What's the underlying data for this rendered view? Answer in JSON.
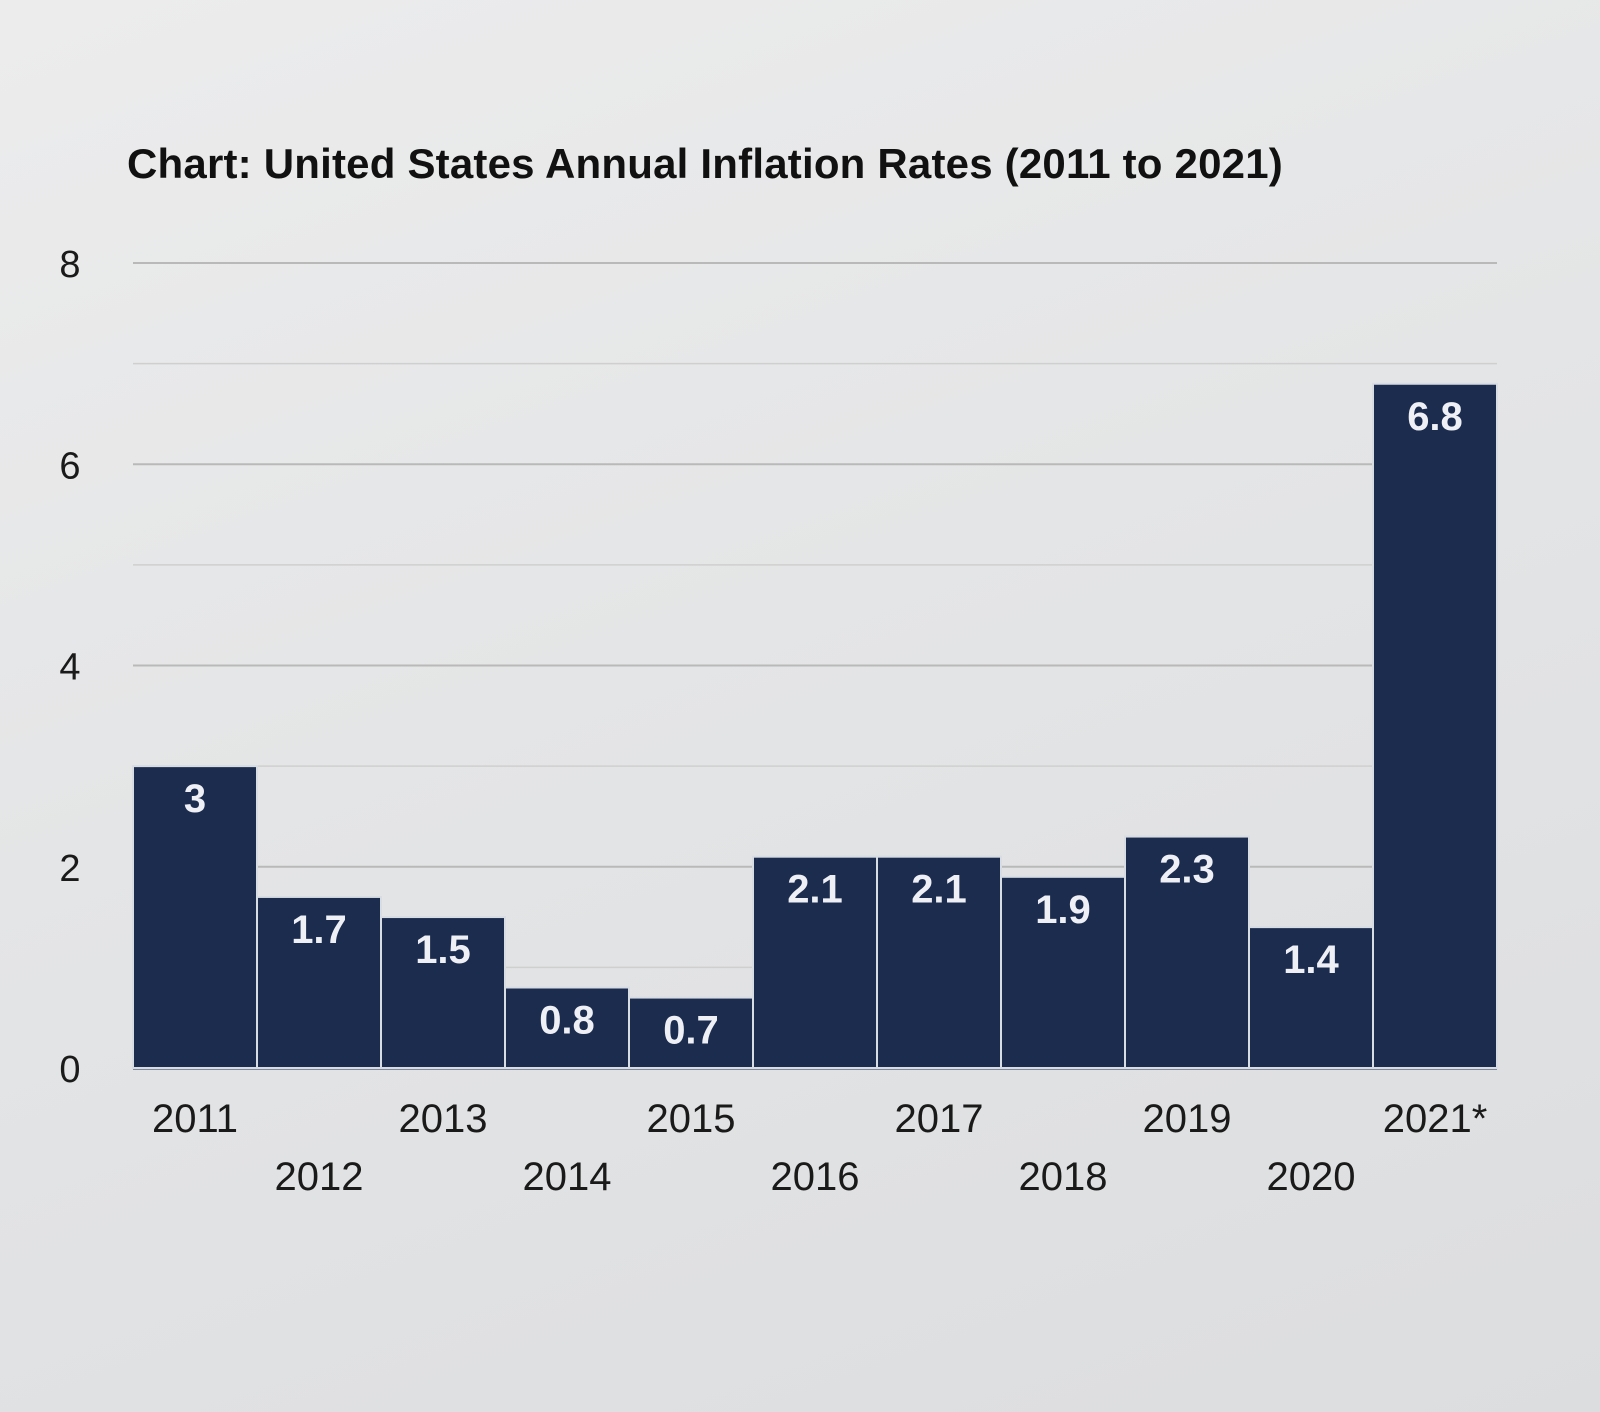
{
  "chart_data": {
    "type": "bar",
    "title": "Chart: United States Annual Inflation Rates (2011 to 2021)",
    "categories": [
      "2011",
      "2012",
      "2013",
      "2014",
      "2015",
      "2016",
      "2017",
      "2018",
      "2019",
      "2020",
      "2021*"
    ],
    "values": [
      3,
      1.7,
      1.5,
      0.8,
      0.7,
      2.1,
      2.1,
      1.9,
      2.3,
      1.4,
      6.8
    ],
    "value_labels": [
      "3",
      "1.7",
      "1.5",
      "0.8",
      "0.7",
      "2.1",
      "2.1",
      "1.9",
      "2.3",
      "1.4",
      "6.8"
    ],
    "xlabel": "",
    "ylabel": "",
    "ylim": [
      0,
      8
    ],
    "yticks": [
      0,
      2,
      4,
      6,
      8
    ],
    "ytick_labels": [
      "0",
      "2",
      "4",
      "6",
      "8"
    ],
    "grid": true,
    "legend": "none",
    "colors": {
      "bar": "#1c2c4f",
      "bar_edge": "#d8dde3",
      "grid": "#b9b9b9",
      "background": "#e6e7e8"
    }
  }
}
